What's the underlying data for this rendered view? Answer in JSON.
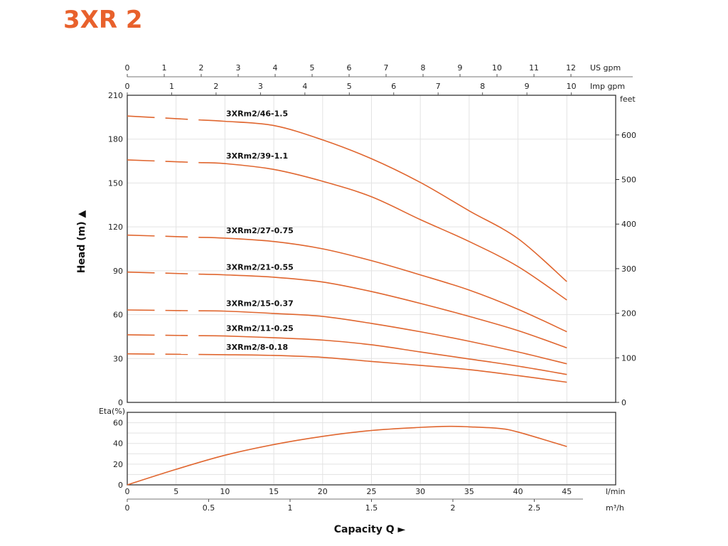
{
  "title": "3XR 2",
  "colors": {
    "curve": "#E0662F",
    "title": "#E8612C",
    "grid": "#e3e3e3",
    "axis": "#333333"
  },
  "chart_data": [
    {
      "type": "line",
      "name": "head",
      "xlabel": "Capacity Q ►",
      "ylabel": "Head (m) ▲",
      "xlim": [
        0,
        50
      ],
      "ylim": [
        0,
        210
      ],
      "grid": true,
      "yticks": [
        0,
        30,
        60,
        90,
        120,
        150,
        180,
        210
      ],
      "right_axis": {
        "label": "feet",
        "ticks": [
          0,
          100,
          200,
          300,
          400,
          500,
          600
        ],
        "factor": 3.281
      },
      "top_axes": [
        {
          "label": "US gpm",
          "ticks": [
            0,
            1,
            2,
            3,
            4,
            5,
            6,
            7,
            8,
            9,
            10,
            11,
            12
          ],
          "lpm_per_unit": 3.785
        },
        {
          "label": "Imp gpm",
          "ticks": [
            0,
            1,
            2,
            3,
            4,
            5,
            6,
            7,
            8,
            9,
            10
          ],
          "lpm_per_unit": 4.546
        }
      ],
      "dashed_range_lpm": [
        0,
        7.3
      ],
      "x": [
        0,
        10,
        15,
        20,
        25,
        30,
        35,
        40,
        45
      ],
      "series": [
        {
          "name": "3XRm2/46-1.5",
          "values": [
            195.8,
            192.2,
            189.3,
            179.5,
            166.6,
            150.4,
            131,
            112,
            82.6
          ]
        },
        {
          "name": "3XRm2/39-1.1",
          "values": [
            165.8,
            163.3,
            159.3,
            151.2,
            140.6,
            125,
            110,
            92.9,
            70
          ]
        },
        {
          "name": "3XRm2/27-0.75",
          "values": [
            114.4,
            112.3,
            110,
            105,
            96.9,
            87.2,
            76.8,
            63.7,
            48.3
          ]
        },
        {
          "name": "3XRm2/21-0.55",
          "values": [
            89.1,
            87.2,
            85.6,
            82.3,
            75.8,
            67.7,
            58.8,
            49.1,
            37.3
          ]
        },
        {
          "name": "3XRm2/15-0.37",
          "values": [
            63.2,
            62.4,
            60.8,
            58.8,
            54,
            48.3,
            41.8,
            34.5,
            26.4
          ]
        },
        {
          "name": "3XRm2/11-0.25",
          "values": [
            46.2,
            45.4,
            44.2,
            42.6,
            39.4,
            34.5,
            29.7,
            24.8,
            19.1
          ]
        },
        {
          "name": "3XRm2/8-0.18",
          "values": [
            33.2,
            32.6,
            32.1,
            30.8,
            28,
            25.3,
            22.4,
            18.3,
            13.8
          ]
        }
      ]
    },
    {
      "type": "line",
      "name": "efficiency",
      "ylabel": "Eta(%)",
      "xlim": [
        0,
        50
      ],
      "ylim": [
        0,
        70
      ],
      "yticks": [
        0,
        20,
        40,
        60
      ],
      "xticks_lpm": [
        0,
        5,
        10,
        15,
        20,
        25,
        30,
        35,
        40,
        45
      ],
      "xunit_lpm": "l/min",
      "xticks_m3h": [
        "0",
        "0.5",
        "1",
        "1.5",
        "2",
        "2.5"
      ],
      "xunit_m3h": "m³/h",
      "x": [
        0,
        5,
        10,
        15,
        20,
        25,
        30,
        33,
        35,
        38,
        40,
        45
      ],
      "values": [
        0,
        15,
        28.6,
        38.9,
        46.8,
        52.5,
        55.5,
        56.5,
        56,
        54.5,
        51,
        37
      ]
    }
  ]
}
